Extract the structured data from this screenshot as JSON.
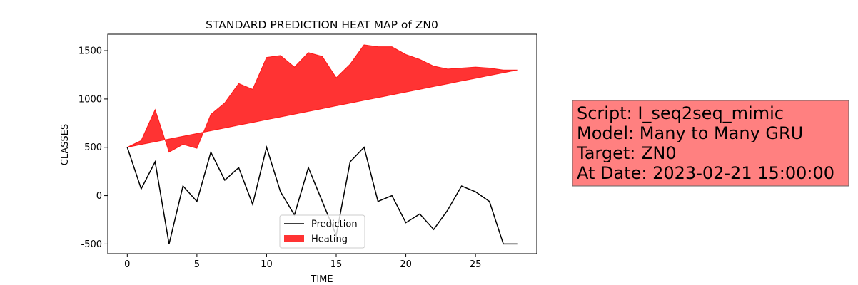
{
  "chart_data": {
    "type": "line",
    "title": "STANDARD PREDICTION HEAT MAP of ZN0",
    "xlabel": "TIME",
    "ylabel": "CLASSES",
    "x": [
      0,
      1,
      2,
      3,
      4,
      5,
      6,
      7,
      8,
      9,
      10,
      11,
      12,
      13,
      14,
      15,
      16,
      17,
      18,
      19,
      20,
      21,
      22,
      23,
      24,
      25,
      26,
      27,
      28
    ],
    "series": [
      {
        "name": "Prediction",
        "color": "#000000",
        "values": [
          500,
          70,
          350,
          -500,
          100,
          -60,
          450,
          160,
          290,
          -90,
          500,
          40,
          -200,
          290,
          -60,
          -410,
          350,
          500,
          -60,
          0,
          -280,
          -190,
          -350,
          -150,
          100,
          40,
          -60,
          -500,
          -500
        ]
      },
      {
        "name": "Heating",
        "color": "#ff0000",
        "opacity": 0.8,
        "values": [
          500,
          570,
          890,
          450,
          530,
          490,
          840,
          960,
          1160,
          1100,
          1430,
          1450,
          1330,
          1480,
          1440,
          1220,
          1360,
          1560,
          1540,
          1540,
          1460,
          1410,
          1340,
          1310,
          1320,
          1330,
          1320,
          1300,
          1300
        ],
        "base": [
          500,
          529,
          557,
          586,
          614,
          643,
          671,
          700,
          729,
          757,
          786,
          814,
          843,
          871,
          900,
          929,
          957,
          986,
          1014,
          1043,
          1071,
          1100,
          1129,
          1157,
          1186,
          1214,
          1243,
          1271,
          1300
        ]
      }
    ],
    "xlim": [
      -1.4,
      29.4
    ],
    "ylim": [
      -600,
      1670
    ],
    "xticks": [
      0,
      5,
      10,
      15,
      20,
      25
    ],
    "yticks": [
      -500,
      0,
      500,
      1000,
      1500
    ],
    "legend": "lower center",
    "annotation": [
      "Script: I_seq2seq_mimic",
      "Model: Many to Many GRU",
      "Target: ZN0",
      "At Date: 2023-02-21 15:00:00"
    ],
    "annotation_color": "#ff8080"
  }
}
